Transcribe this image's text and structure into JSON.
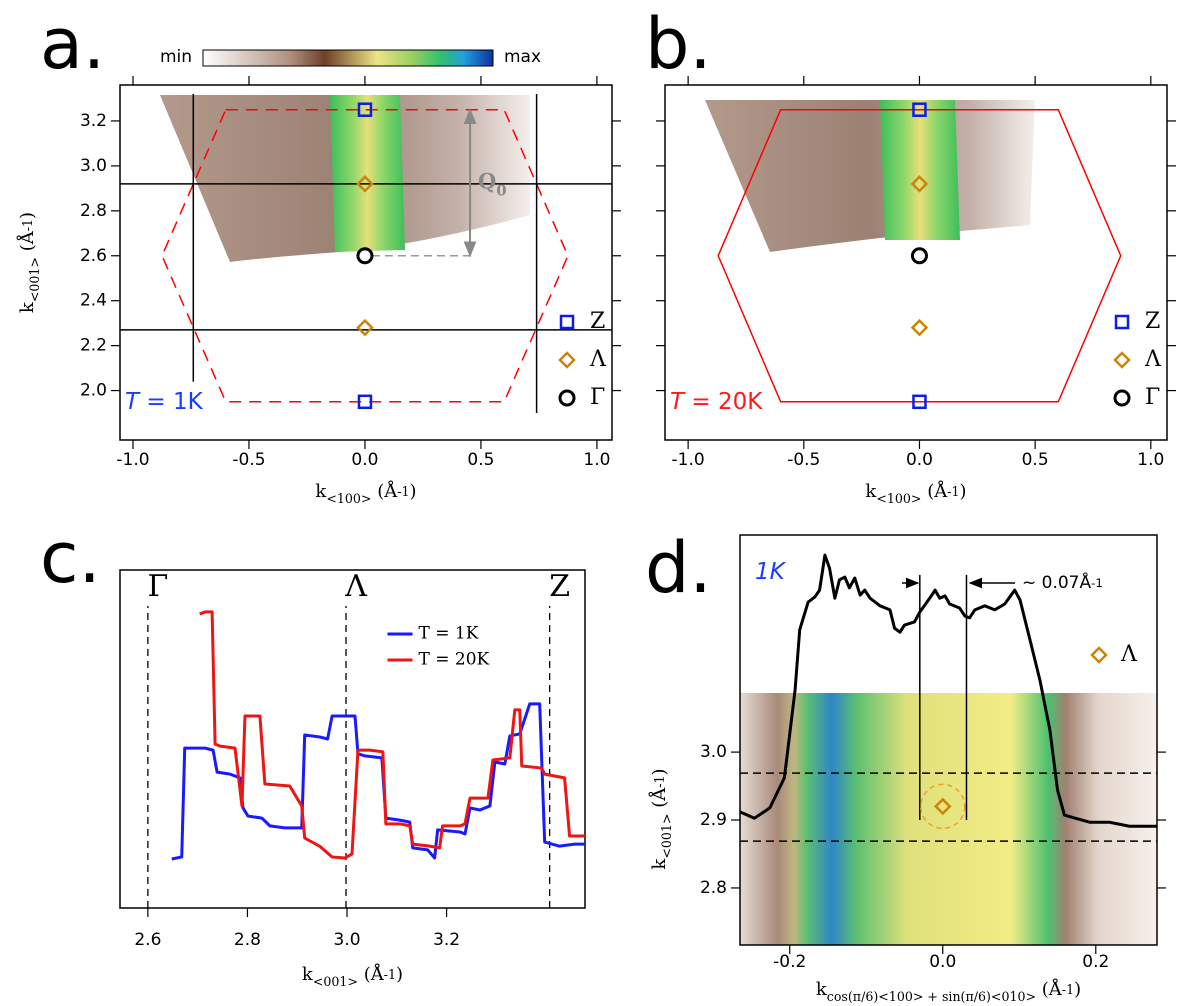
{
  "colorbar": {
    "low": "min",
    "high": "max"
  },
  "chart_data": [
    {
      "type": "scatter",
      "panel": "a.",
      "label": [
        "T",
        " = 1K"
      ],
      "label_color": "#1a3cff",
      "xlabel": [
        "k",
        "<100>",
        " (Å",
        "-1",
        ")"
      ],
      "ylabel": [
        "k",
        "<001>",
        " (Å",
        "-1",
        ")"
      ],
      "xlim": [
        -1.056,
        1.065
      ],
      "ylim": [
        1.78,
        3.36
      ],
      "xticks": [
        {
          "value": -1,
          "label": "-1.0"
        },
        -0.5,
        {
          "value": 0,
          "label": "0.0"
        },
        0.5,
        {
          "value": 1,
          "label": "1.0"
        }
      ],
      "yticks": [
        {
          "value": 2,
          "label": "2.0"
        },
        2.2,
        2.4,
        2.6,
        2.8,
        {
          "value": 3,
          "label": "3.0"
        },
        3.2
      ],
      "mirror_ticks": "both",
      "legend": "lower right",
      "series": [
        {
          "name": "Z",
          "color": "#0a1ee6",
          "marker": "square",
          "x": [
            0,
            0
          ],
          "values": [
            3.25,
            1.95
          ]
        },
        {
          "name": "Λ",
          "color": "#c8860a",
          "marker": "diamond",
          "x": [
            0,
            0
          ],
          "values": [
            2.92,
            2.28
          ]
        },
        {
          "name": "Γ",
          "color": "#000000",
          "marker": "circle",
          "x": [
            0
          ],
          "values": [
            2.6
          ]
        }
      ],
      "shapes": [
        {
          "x": [
            -0.6,
            0.6,
            0.875,
            0.6,
            -0.6,
            -0.875
          ],
          "values": [
            3.25,
            3.25,
            2.6,
            1.95,
            1.95,
            2.6
          ],
          "color": "#ff0000",
          "dash": true
        }
      ],
      "segments": [
        {
          "x": [
            -0.74,
            -0.74
          ],
          "values": [
            2.04,
            3.32
          ],
          "color": "#000000"
        },
        {
          "x": [
            0.74,
            0.74
          ],
          "values": [
            1.9,
            3.32
          ],
          "color": "#000000"
        },
        {
          "x": [
            -1.056,
            1.065
          ],
          "values": [
            2.92,
            2.92
          ],
          "color": "#000000"
        },
        {
          "x": [
            -1.056,
            1.065
          ],
          "values": [
            2.27,
            2.27
          ],
          "color": "#000000"
        },
        {
          "x": [
            0.03,
            0.47
          ],
          "values": [
            2.6,
            2.6
          ],
          "color": "#999999",
          "dash": true
        }
      ],
      "arrows": [
        {
          "x": [
            0.453,
            0.453
          ],
          "values": [
            2.6,
            3.25
          ],
          "color": "#888888",
          "label": [
            "Q",
            "0"
          ]
        }
      ]
    },
    {
      "type": "scatter",
      "panel": "b.",
      "label": [
        "T",
        " = 20K"
      ],
      "label_color": "#ff1a1a",
      "xlabel": [
        "k",
        "<100>",
        " (Å",
        "-1",
        ")"
      ],
      "xlim": [
        -1.1,
        1.07
      ],
      "ylim": [
        1.78,
        3.36
      ],
      "xticks": [
        {
          "value": -1,
          "label": "-1.0"
        },
        -0.5,
        {
          "value": 0,
          "label": "0.0"
        },
        0.5,
        {
          "value": 1,
          "label": "1.0"
        }
      ],
      "yticks": [
        {
          "value": 2,
          "label": ""
        },
        2.2,
        2.4,
        2.6,
        2.8,
        3,
        3.2
      ],
      "mirror_ticks": "both",
      "legend": "lower right",
      "series": [
        {
          "name": "Z",
          "color": "#0a1ee6",
          "marker": "square",
          "x": [
            0,
            0
          ],
          "values": [
            3.25,
            1.95
          ]
        },
        {
          "name": "Λ",
          "color": "#c8860a",
          "marker": "diamond",
          "x": [
            0,
            0
          ],
          "values": [
            2.92,
            2.28
          ]
        },
        {
          "name": "Γ",
          "color": "#000000",
          "marker": "circle",
          "x": [
            0
          ],
          "values": [
            2.6
          ]
        }
      ],
      "shapes": [
        {
          "x": [
            -0.6,
            0.6,
            0.87,
            0.6,
            -0.6,
            -0.87
          ],
          "values": [
            3.25,
            3.25,
            2.6,
            1.95,
            1.95,
            2.6
          ],
          "color": "#ff0000",
          "dash": false
        }
      ]
    },
    {
      "type": "line",
      "panel": "c.",
      "xlabel": [
        "k",
        "<001>",
        " (Å",
        "-1",
        ")"
      ],
      "xlim": [
        2.544,
        3.478
      ],
      "ylim": [
        0,
        1
      ],
      "xticks": [
        2.6,
        2.8,
        {
          "value": 3,
          "label": "3.0"
        },
        3.2
      ],
      "legend": "upper center",
      "vlines": [
        {
          "x": 2.6,
          "label": "Γ"
        },
        {
          "x": 2.998,
          "label": "Λ"
        },
        {
          "x": 3.407,
          "label": "Z"
        }
      ],
      "series": [
        {
          "name": "T = 1K",
          "color": "#1a1aff",
          "x": [
            2.648,
            2.668,
            2.674,
            2.715,
            2.731,
            2.739,
            2.765,
            2.785,
            2.791,
            2.801,
            2.829,
            2.845,
            2.875,
            2.909,
            2.915,
            2.945,
            2.961,
            2.97,
            3.016,
            3.022,
            3.036,
            3.07,
            3.078,
            3.106,
            3.126,
            3.132,
            3.162,
            3.176,
            3.182,
            3.227,
            3.237,
            3.247,
            3.267,
            3.287,
            3.297,
            3.317,
            3.327,
            3.347,
            3.367,
            3.387,
            3.397,
            3.427,
            3.457,
            3.478
          ],
          "values": [
            0.145,
            0.151,
            0.473,
            0.473,
            0.467,
            0.402,
            0.396,
            0.385,
            0.296,
            0.272,
            0.266,
            0.243,
            0.237,
            0.237,
            0.512,
            0.506,
            0.5,
            0.568,
            0.568,
            0.456,
            0.45,
            0.444,
            0.266,
            0.26,
            0.254,
            0.178,
            0.172,
            0.148,
            0.231,
            0.225,
            0.219,
            0.296,
            0.29,
            0.302,
            0.432,
            0.426,
            0.509,
            0.515,
            0.604,
            0.604,
            0.195,
            0.183,
            0.189,
            0.189
          ]
        },
        {
          "name": "T = 20K",
          "color": "#ee1515",
          "x": [
            2.704,
            2.715,
            2.729,
            2.735,
            2.745,
            2.775,
            2.789,
            2.795,
            2.825,
            2.835,
            2.885,
            2.909,
            2.915,
            2.945,
            2.97,
            2.996,
            3.01,
            3.022,
            3.046,
            3.072,
            3.078,
            3.106,
            3.126,
            3.132,
            3.166,
            3.186,
            3.192,
            3.227,
            3.237,
            3.247,
            3.283,
            3.293,
            3.327,
            3.337,
            3.347,
            3.351,
            3.391,
            3.397,
            3.437,
            3.447,
            3.478
          ],
          "values": [
            0.87,
            0.876,
            0.876,
            0.485,
            0.479,
            0.473,
            0.302,
            0.568,
            0.568,
            0.367,
            0.361,
            0.302,
            0.207,
            0.183,
            0.151,
            0.148,
            0.16,
            0.467,
            0.467,
            0.462,
            0.249,
            0.249,
            0.243,
            0.189,
            0.183,
            0.178,
            0.243,
            0.243,
            0.249,
            0.325,
            0.325,
            0.438,
            0.444,
            0.586,
            0.586,
            0.42,
            0.414,
            0.396,
            0.385,
            0.213,
            0.213
          ]
        }
      ]
    },
    {
      "type": "line",
      "panel": "d.",
      "label": [
        "1K"
      ],
      "label_color": "#1a3cff",
      "xlabel": [
        "k",
        "cos(π/6)<100> + sin(π/6)<010>",
        " (Å",
        "-1",
        ")"
      ],
      "ylabel": [
        "k",
        "<001>",
        " (Å",
        "-1",
        ")"
      ],
      "xlim": [
        -0.265,
        0.28
      ],
      "ylim": [
        2.716,
        3.087
      ],
      "y2lim": [
        0.085,
        1
      ],
      "xticks": [
        -0.2,
        {
          "value": 0,
          "label": "0.0"
        },
        0.2
      ],
      "yticks": [
        2.8,
        2.9,
        {
          "value": 3,
          "label": "3.0"
        }
      ],
      "mirror_ticks": "y",
      "legend": "upper right",
      "annotation": [
        "~ 0.07Å",
        "-1"
      ],
      "series": [
        {
          "color": "#000000",
          "axis": "y2",
          "x": [
            -0.265,
            -0.246,
            -0.226,
            -0.207,
            -0.193,
            -0.187,
            -0.176,
            -0.167,
            -0.161,
            -0.154,
            -0.148,
            -0.141,
            -0.135,
            -0.128,
            -0.122,
            -0.115,
            -0.108,
            -0.102,
            -0.095,
            -0.082,
            -0.069,
            -0.063,
            -0.056,
            -0.05,
            -0.037,
            -0.03,
            -0.017,
            -0.01,
            -0.004,
            0.003,
            0.009,
            0.022,
            0.029,
            0.035,
            0.042,
            0.055,
            0.068,
            0.081,
            0.094,
            0.101,
            0.114,
            0.127,
            0.14,
            0.15,
            0.159,
            0.173,
            0.192,
            0.218,
            0.244,
            0.28
          ],
          "values": [
            0.382,
            0.368,
            0.391,
            0.458,
            0.654,
            0.788,
            0.85,
            0.862,
            0.877,
            0.955,
            0.926,
            0.859,
            0.9,
            0.906,
            0.882,
            0.904,
            0.866,
            0.877,
            0.859,
            0.842,
            0.833,
            0.792,
            0.783,
            0.799,
            0.806,
            0.828,
            0.859,
            0.877,
            0.859,
            0.864,
            0.846,
            0.837,
            0.819,
            0.815,
            0.833,
            0.842,
            0.833,
            0.846,
            0.877,
            0.855,
            0.766,
            0.676,
            0.565,
            0.431,
            0.375,
            0.368,
            0.359,
            0.359,
            0.35,
            0.35
          ]
        },
        {
          "name": "Λ",
          "color": "#c8860a",
          "marker": "diamond",
          "highlight": true,
          "x": [
            0
          ],
          "values": [
            2.92
          ]
        }
      ],
      "segments": [
        {
          "x": [
            -0.03,
            -0.03
          ],
          "values": [
            0.364,
            0.911
          ],
          "color": "#000000",
          "axis": "y2"
        },
        {
          "x": [
            0.031,
            0.031
          ],
          "values": [
            0.364,
            0.911
          ],
          "color": "#000000",
          "axis": "y2"
        },
        {
          "x": [
            -0.265,
            0.28
          ],
          "values": [
            2.969,
            2.969
          ],
          "color": "#000000",
          "dash": true
        },
        {
          "x": [
            -0.265,
            0.28
          ],
          "values": [
            2.869,
            2.869
          ],
          "color": "#000000",
          "dash": true
        }
      ]
    }
  ]
}
